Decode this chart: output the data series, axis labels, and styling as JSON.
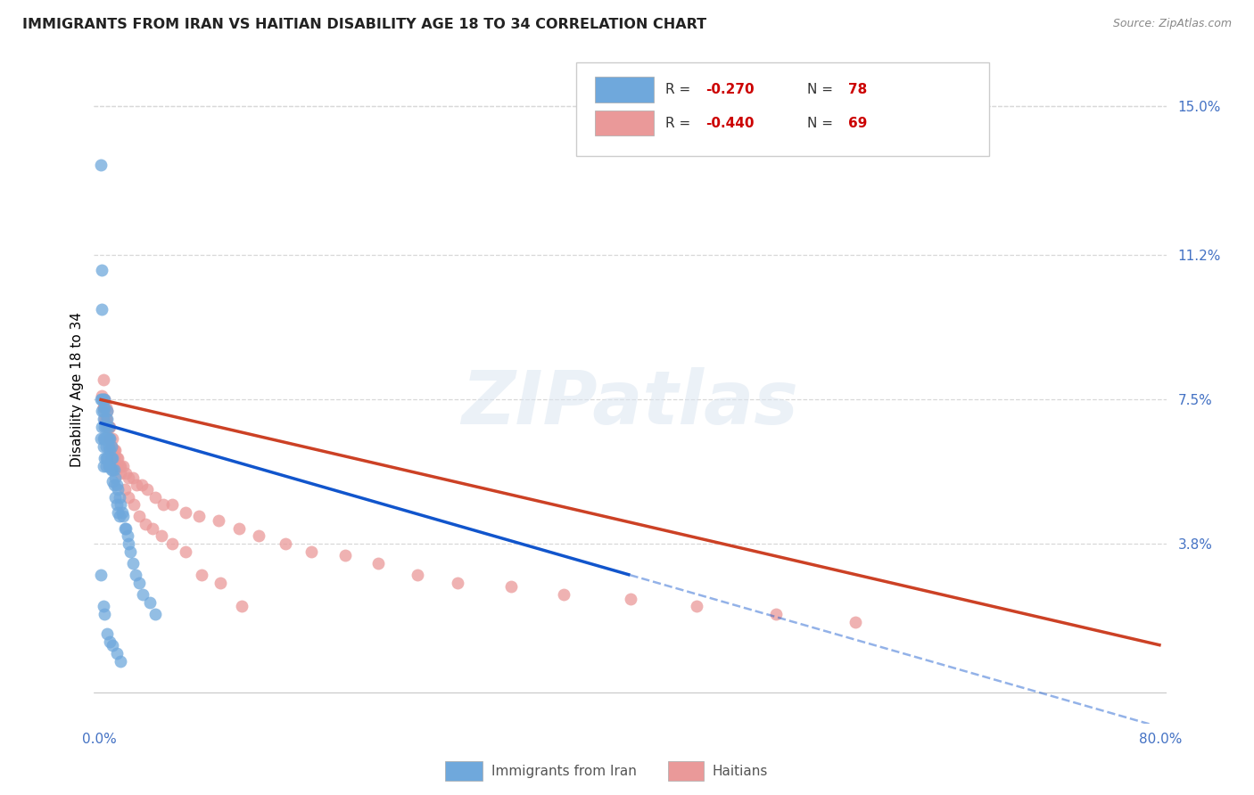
{
  "title": "IMMIGRANTS FROM IRAN VS HAITIAN DISABILITY AGE 18 TO 34 CORRELATION CHART",
  "source": "Source: ZipAtlas.com",
  "ylabel": "Disability Age 18 to 34",
  "yticks": [
    0.0,
    0.038,
    0.075,
    0.112,
    0.15
  ],
  "ytick_labels": [
    "",
    "3.8%",
    "7.5%",
    "11.2%",
    "15.0%"
  ],
  "xlim": [
    -0.004,
    0.804
  ],
  "ylim": [
    -0.008,
    0.163
  ],
  "iran_color": "#6fa8dc",
  "haitian_color": "#ea9999",
  "iran_line_color": "#1155cc",
  "haitian_line_color": "#cc4125",
  "watermark": "ZIPatlas",
  "iran_scatter_x": [
    0.001,
    0.001,
    0.001,
    0.002,
    0.002,
    0.002,
    0.002,
    0.002,
    0.003,
    0.003,
    0.003,
    0.003,
    0.003,
    0.003,
    0.004,
    0.004,
    0.004,
    0.004,
    0.004,
    0.005,
    0.005,
    0.005,
    0.005,
    0.005,
    0.006,
    0.006,
    0.006,
    0.006,
    0.007,
    0.007,
    0.007,
    0.007,
    0.008,
    0.008,
    0.008,
    0.009,
    0.009,
    0.009,
    0.01,
    0.01,
    0.01,
    0.011,
    0.011,
    0.012,
    0.012,
    0.013,
    0.013,
    0.014,
    0.014,
    0.015,
    0.015,
    0.016,
    0.017,
    0.018,
    0.019,
    0.02,
    0.021,
    0.022,
    0.023,
    0.025,
    0.027,
    0.03,
    0.033,
    0.038,
    0.042,
    0.001,
    0.003,
    0.004,
    0.006,
    0.008,
    0.01,
    0.013,
    0.016
  ],
  "iran_scatter_y": [
    0.135,
    0.075,
    0.065,
    0.108,
    0.098,
    0.075,
    0.072,
    0.068,
    0.075,
    0.072,
    0.07,
    0.065,
    0.063,
    0.058,
    0.075,
    0.073,
    0.068,
    0.065,
    0.06,
    0.068,
    0.065,
    0.063,
    0.06,
    0.058,
    0.072,
    0.07,
    0.065,
    0.06,
    0.068,
    0.065,
    0.063,
    0.058,
    0.065,
    0.062,
    0.058,
    0.063,
    0.06,
    0.057,
    0.06,
    0.057,
    0.054,
    0.057,
    0.053,
    0.055,
    0.05,
    0.053,
    0.048,
    0.052,
    0.046,
    0.05,
    0.045,
    0.048,
    0.046,
    0.045,
    0.042,
    0.042,
    0.04,
    0.038,
    0.036,
    0.033,
    0.03,
    0.028,
    0.025,
    0.023,
    0.02,
    0.03,
    0.022,
    0.02,
    0.015,
    0.013,
    0.012,
    0.01,
    0.008
  ],
  "haitian_scatter_x": [
    0.002,
    0.003,
    0.003,
    0.004,
    0.004,
    0.005,
    0.005,
    0.006,
    0.006,
    0.007,
    0.007,
    0.008,
    0.008,
    0.009,
    0.01,
    0.01,
    0.011,
    0.012,
    0.013,
    0.014,
    0.015,
    0.016,
    0.018,
    0.02,
    0.022,
    0.025,
    0.028,
    0.032,
    0.036,
    0.042,
    0.048,
    0.055,
    0.065,
    0.075,
    0.09,
    0.105,
    0.12,
    0.14,
    0.16,
    0.185,
    0.21,
    0.24,
    0.27,
    0.31,
    0.35,
    0.4,
    0.45,
    0.51,
    0.57,
    0.003,
    0.005,
    0.007,
    0.009,
    0.011,
    0.013,
    0.016,
    0.019,
    0.022,
    0.026,
    0.03,
    0.035,
    0.04,
    0.047,
    0.055,
    0.065,
    0.077,
    0.091,
    0.107
  ],
  "haitian_scatter_y": [
    0.076,
    0.08,
    0.073,
    0.075,
    0.07,
    0.073,
    0.07,
    0.072,
    0.068,
    0.068,
    0.065,
    0.068,
    0.065,
    0.063,
    0.065,
    0.062,
    0.062,
    0.062,
    0.06,
    0.06,
    0.058,
    0.058,
    0.058,
    0.056,
    0.055,
    0.055,
    0.053,
    0.053,
    0.052,
    0.05,
    0.048,
    0.048,
    0.046,
    0.045,
    0.044,
    0.042,
    0.04,
    0.038,
    0.036,
    0.035,
    0.033,
    0.03,
    0.028,
    0.027,
    0.025,
    0.024,
    0.022,
    0.02,
    0.018,
    0.073,
    0.07,
    0.068,
    0.063,
    0.06,
    0.058,
    0.056,
    0.052,
    0.05,
    0.048,
    0.045,
    0.043,
    0.042,
    0.04,
    0.038,
    0.036,
    0.03,
    0.028,
    0.022
  ],
  "iran_trend_x0": 0.0,
  "iran_trend_y0": 0.069,
  "iran_trend_x1": 0.4,
  "iran_trend_y1": 0.03,
  "iran_trend_ext_x1": 0.8,
  "iran_trend_ext_y1": -0.009,
  "haitian_trend_x0": 0.0,
  "haitian_trend_y0": 0.075,
  "haitian_trend_x1": 0.8,
  "haitian_trend_y1": 0.012,
  "background_color": "#ffffff",
  "grid_color": "#d8d8d8",
  "title_fontsize": 11.5,
  "bottom_legend_iran": "Immigrants from Iran",
  "bottom_legend_haitian": "Haitians"
}
